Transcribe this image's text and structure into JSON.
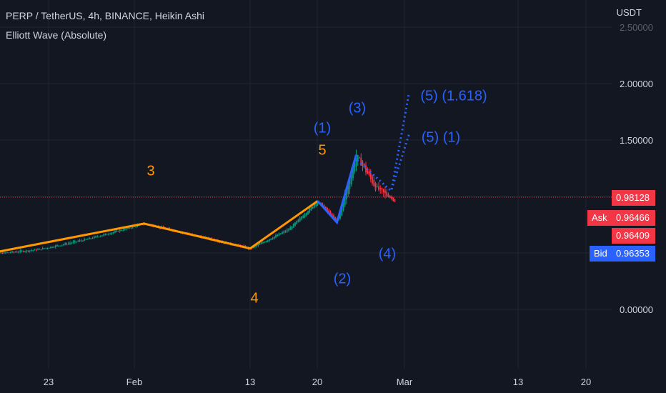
{
  "header": {
    "symbol_line": "PERP / TetherUS, 4h, BINANCE, Heikin Ashi",
    "indicator_line": "Elliott Wave (Absolute)"
  },
  "currency": "USDT",
  "price_tags": {
    "last": {
      "value": "0.98128",
      "color": "#f23645"
    },
    "ask": {
      "label": "Ask",
      "value": "0.96466",
      "color": "#f23645"
    },
    "mid": {
      "value": "0.96409",
      "color": "#f23645"
    },
    "bid": {
      "label": "Bid",
      "value": "0.96353",
      "color": "#2962ff"
    }
  },
  "chart_data": {
    "type": "candlestick",
    "y_axis": {
      "ticks": [
        "2.50000",
        "2.00000",
        "1.50000",
        "0.00000"
      ],
      "ylim": [
        -0.3,
        2.6
      ]
    },
    "x_axis": {
      "ticks": [
        "23",
        "Feb",
        "13",
        "20",
        "Mar",
        "13",
        "20"
      ]
    },
    "price_path": [
      {
        "date": "Jan 16",
        "price": 0.48
      },
      {
        "date": "Jan 22",
        "price": 0.53
      },
      {
        "date": "Jan 27",
        "price": 0.62
      },
      {
        "date": "Feb 2",
        "price": 0.76
      },
      {
        "date": "Feb 8",
        "price": 0.64
      },
      {
        "date": "Feb 13",
        "price": 0.54
      },
      {
        "date": "Feb 17",
        "price": 0.71
      },
      {
        "date": "Feb 20",
        "price": 0.96
      },
      {
        "date": "Feb 22",
        "price": 0.77
      },
      {
        "date": "Feb 24",
        "price": 1.37
      },
      {
        "date": "Feb 26",
        "price": 1.08
      },
      {
        "date": "Feb 28",
        "price": 0.96
      }
    ],
    "colors": {
      "up": "#089981",
      "down": "#f23645"
    },
    "elliott_wave": {
      "primary": {
        "color": "#ff9800",
        "points": [
          {
            "date": "Jan 16",
            "price": 0.48
          },
          {
            "date": "Feb 2",
            "price": 0.76,
            "label": "3"
          },
          {
            "date": "Feb 13",
            "price": 0.54,
            "label": "4"
          },
          {
            "date": "Feb 20",
            "price": 0.96,
            "label": "5"
          }
        ]
      },
      "intermediate": {
        "color": "#2962ff",
        "points": [
          {
            "date": "Feb 20",
            "price": 0.96,
            "label": "(1)"
          },
          {
            "date": "Feb 22",
            "price": 0.77,
            "label": "(2)"
          },
          {
            "date": "Feb 24",
            "price": 1.37,
            "label": "(3)"
          },
          {
            "date": "Feb 28",
            "price": 0.96,
            "label": "(4)"
          }
        ]
      },
      "projections": [
        {
          "label": "(5) (1.618)",
          "price": 1.92
        },
        {
          "label": "(5) (1)",
          "price": 1.57
        }
      ]
    },
    "last_price": 0.98128
  }
}
